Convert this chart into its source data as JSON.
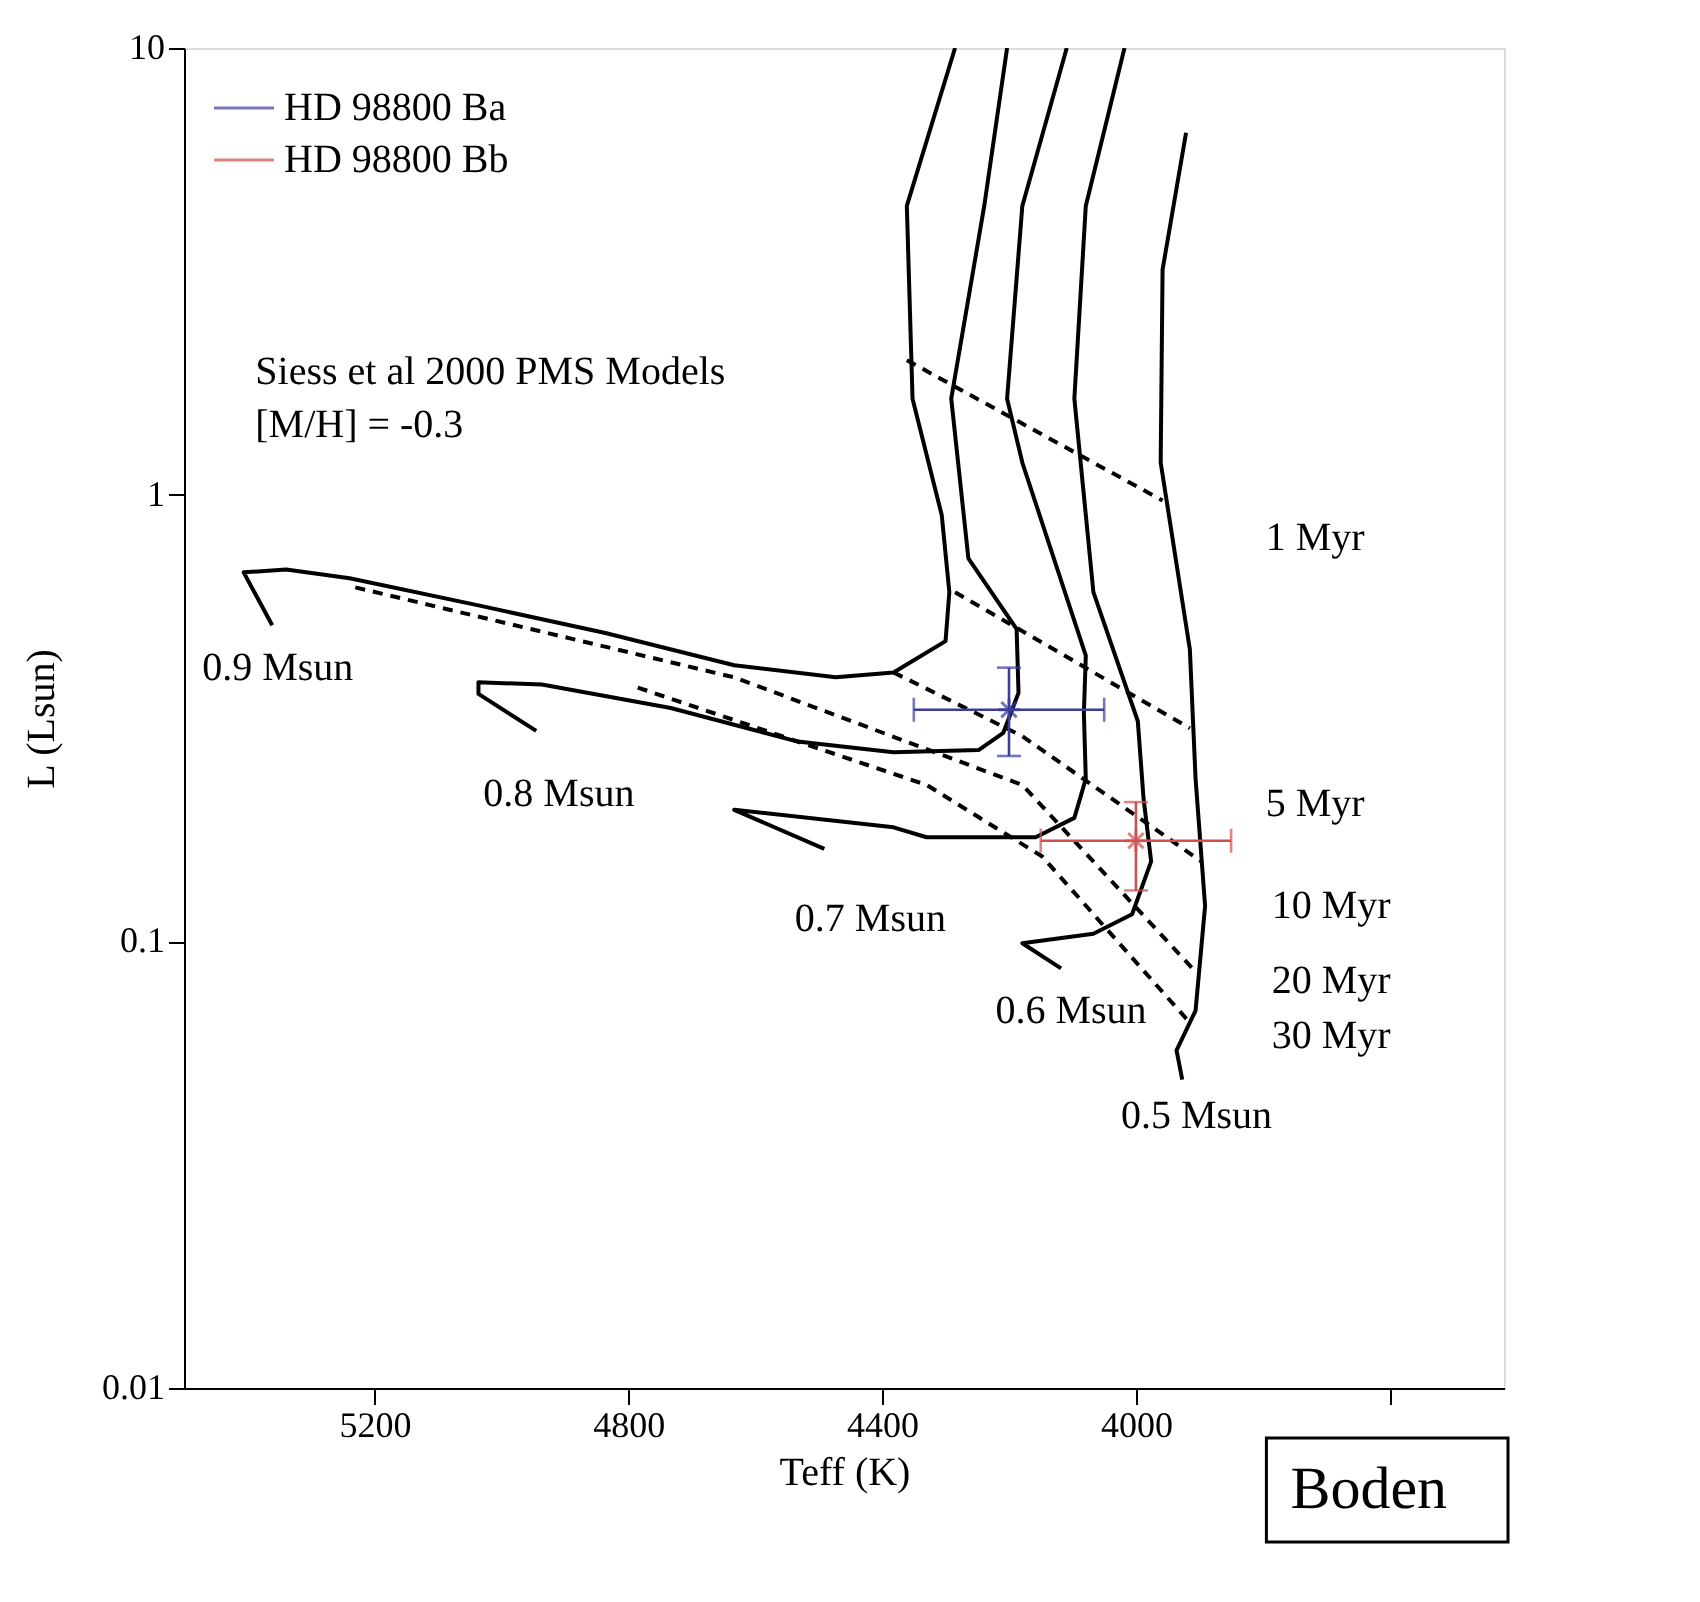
{
  "chart_data": {
    "type": "line",
    "xlabel": "Teff (K)",
    "ylabel": "L (Lsun)",
    "log": "y",
    "xlim": [
      5500,
      3420
    ],
    "xticks": [
      5200,
      4800,
      4400,
      4000,
      {
        "value": 3600,
        "label": null
      }
    ],
    "ylim": [
      0.01,
      10
    ],
    "yticks": [
      0.01,
      0.1,
      1,
      10
    ],
    "grid": false,
    "legend": "top left",
    "series": [
      {
        "type": "line",
        "color": "#000000",
        "line_style": "solid",
        "x": [
          4285,
          4361,
          4352,
          4306,
          4294,
          4300,
          4382,
          4473,
          4633,
          4836,
          5036,
          5239,
          5339,
          5406,
          5361
        ],
        "values": [
          10,
          4.43,
          1.64,
          0.9,
          0.605,
          0.47,
          0.4,
          0.39,
          0.415,
          0.49,
          0.565,
          0.65,
          0.68,
          0.67,
          0.51
        ]
      },
      {
        "type": "line",
        "color": "#000000",
        "line_style": "solid",
        "x": [
          4203,
          4239,
          4291,
          4264,
          4188,
          4185,
          4209,
          4248,
          4382,
          4533,
          4733,
          4936,
          5036,
          5036,
          4945
        ],
        "values": [
          10,
          4.43,
          1.64,
          0.72,
          0.5,
          0.36,
          0.293,
          0.268,
          0.265,
          0.28,
          0.333,
          0.376,
          0.38,
          0.358,
          0.296
        ]
      },
      {
        "type": "line",
        "color": "#000000",
        "line_style": "solid",
        "x": [
          4109,
          4179,
          4203,
          4179,
          4079,
          4082,
          4079,
          4097,
          4158,
          4330,
          4382,
          4633,
          4491
        ],
        "values": [
          10,
          4.43,
          1.64,
          1.18,
          0.436,
          0.324,
          0.231,
          0.189,
          0.171,
          0.171,
          0.18,
          0.197,
          0.161
        ]
      },
      {
        "type": "line",
        "color": "#000000",
        "line_style": "solid",
        "x": [
          4018,
          4079,
          4097,
          4067,
          3997,
          3988,
          3976,
          4006,
          4067,
          4179,
          4118
        ],
        "values": [
          10,
          4.43,
          1.64,
          0.605,
          0.311,
          0.209,
          0.151,
          0.115,
          0.104,
          0.099,
          0.087
        ]
      },
      {
        "type": "line",
        "color": "#000000",
        "line_style": "solid",
        "x": [
          3921,
          3958,
          3961,
          3915,
          3906,
          3891,
          3906,
          3936,
          3927
        ],
        "values": [
          6.46,
          3.19,
          1.18,
          0.45,
          0.231,
          0.12,
          0.07,
          0.057,
          0.049
        ]
      },
      {
        "type": "line",
        "color": "#000000",
        "line_style": "dashed",
        "x": [
          4361,
          3958
        ],
        "values": [
          2.0,
          0.97
        ]
      },
      {
        "type": "line",
        "color": "#000000",
        "line_style": "dashed",
        "x": [
          4285,
          3915
        ],
        "values": [
          0.605,
          0.3
        ]
      },
      {
        "type": "line",
        "color": "#000000",
        "line_style": "dashed",
        "x": [
          4382,
          4179,
          3897
        ],
        "values": [
          0.4,
          0.288,
          0.151
        ]
      },
      {
        "type": "line",
        "color": "#000000",
        "line_style": "dashed",
        "x": [
          5230,
          4633,
          4179,
          3906
        ],
        "values": [
          0.62,
          0.39,
          0.224,
          0.0855
        ]
      },
      {
        "type": "line",
        "color": "#000000",
        "line_style": "dashed",
        "x": [
          4785,
          4330,
          4148,
          3912
        ],
        "values": [
          0.37,
          0.224,
          0.155,
          0.065
        ]
      },
      {
        "type": "scatter",
        "name": "HD 98800 Ba",
        "color": "#3c3c9c",
        "marker": "cross",
        "x": [
          4200
        ],
        "values": [
          0.33
        ],
        "errors": [
          [
            0.26,
            0.41
          ]
        ],
        "xerrors": [
          [
            4050,
            4350
          ]
        ]
      },
      {
        "type": "scatter",
        "name": "HD 98800 Bb",
        "color": "#d05050",
        "marker": "cross",
        "x": [
          4000
        ],
        "values": [
          0.168
        ],
        "errors": [
          [
            0.13,
            0.205
          ]
        ],
        "xerrors": [
          [
            3850,
            4150
          ]
        ]
      }
    ],
    "annotations": [
      "0.9 Msun",
      "0.8 Msun",
      "0.7 Msun",
      "0.6 Msun",
      "0.5 Msun",
      "1 Myr",
      "5 Myr",
      "10 Myr",
      "20 Myr",
      "30 Myr",
      "Siess et al 2000 PMS Models",
      "[M/H] = -0.3",
      "Boden"
    ]
  }
}
